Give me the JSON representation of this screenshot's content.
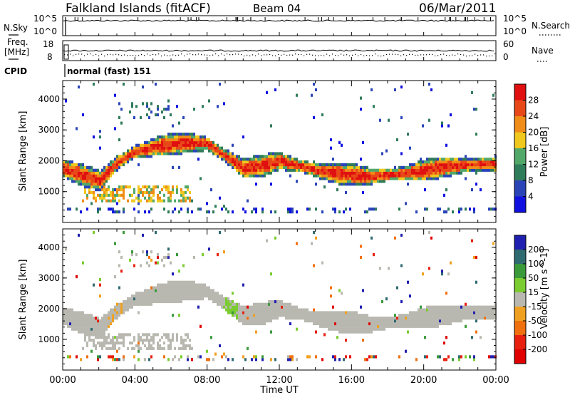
{
  "header": {
    "title": "Falkland Islands (fitACF)",
    "beam": "Beam 04",
    "date": "06/Mar/2011"
  },
  "status_panels": {
    "nsky": {
      "label": "N.Sky",
      "ticks": [
        "10^5",
        "10^0"
      ],
      "right_label": "N.Search",
      "right_ticks": [
        "10^5",
        "10^0"
      ]
    },
    "freq": {
      "label_line1": "Freq.",
      "label_line2": "[MHz]",
      "ticks": [
        "18",
        "8"
      ],
      "right_label": "Nave",
      "right_ticks": [
        "60",
        "0"
      ]
    },
    "cpid": {
      "label": "CPID",
      "value": "normal (fast) 151"
    }
  },
  "chart_data": [
    {
      "type": "heatmap",
      "name": "power",
      "ylabel": "Slant Range [km]",
      "ylim": [
        0,
        4600
      ],
      "yticks": [
        1000,
        2000,
        3000,
        4000
      ],
      "xlim_hours": [
        0,
        24
      ],
      "colorbar": {
        "label": "Power [dB]",
        "tick_labels": [
          "4",
          "8",
          "12",
          "16",
          "20",
          "24",
          "28"
        ],
        "colors": [
          "#1010e0",
          "#2a44b8",
          "#2f7c5a",
          "#52a868",
          "#f0c81e",
          "#f08c18",
          "#e84818",
          "#e01010"
        ]
      },
      "main_band": [
        {
          "x": 0,
          "y": 1700
        },
        {
          "x": 1,
          "y": 1500
        },
        {
          "x": 2,
          "y": 1300
        },
        {
          "x": 3,
          "y": 1900
        },
        {
          "x": 4,
          "y": 2250
        },
        {
          "x": 5,
          "y": 2400
        },
        {
          "x": 6,
          "y": 2500
        },
        {
          "x": 7,
          "y": 2550
        },
        {
          "x": 8,
          "y": 2500
        },
        {
          "x": 9,
          "y": 2100
        },
        {
          "x": 10,
          "y": 1700
        },
        {
          "x": 11,
          "y": 1800
        },
        {
          "x": 12,
          "y": 1950
        },
        {
          "x": 13,
          "y": 1800
        },
        {
          "x": 14,
          "y": 1650
        },
        {
          "x": 15,
          "y": 1550
        },
        {
          "x": 16,
          "y": 1500
        },
        {
          "x": 17,
          "y": 1450
        },
        {
          "x": 18,
          "y": 1500
        },
        {
          "x": 19,
          "y": 1550
        },
        {
          "x": 20,
          "y": 1650
        },
        {
          "x": 21,
          "y": 1750
        },
        {
          "x": 22,
          "y": 1800
        },
        {
          "x": 23,
          "y": 1850
        },
        {
          "x": 24,
          "y": 1850
        }
      ],
      "grid": false
    },
    {
      "type": "heatmap",
      "name": "velocity",
      "xlabel": "Time UT",
      "ylabel": "Slant Range [km]",
      "ylim": [
        0,
        4600
      ],
      "yticks": [
        1000,
        2000,
        3000,
        4000
      ],
      "xticks": [
        "00:00",
        "04:00",
        "08:00",
        "12:00",
        "16:00",
        "20:00",
        "00:00"
      ],
      "colorbar": {
        "label": "Velocity [m s^-1]",
        "tick_labels": [
          "200",
          "100",
          "50",
          "15",
          "-15",
          "-50",
          "-100",
          "-200"
        ],
        "colors": [
          "#2020b0",
          "#2e6a70",
          "#3a9a3a",
          "#7acc30",
          "#b8b8b0",
          "#f0a020",
          "#f07010",
          "#e82010",
          "#e00000"
        ]
      },
      "ground_scatter_color": "#b8b8b0",
      "grid": false
    }
  ]
}
